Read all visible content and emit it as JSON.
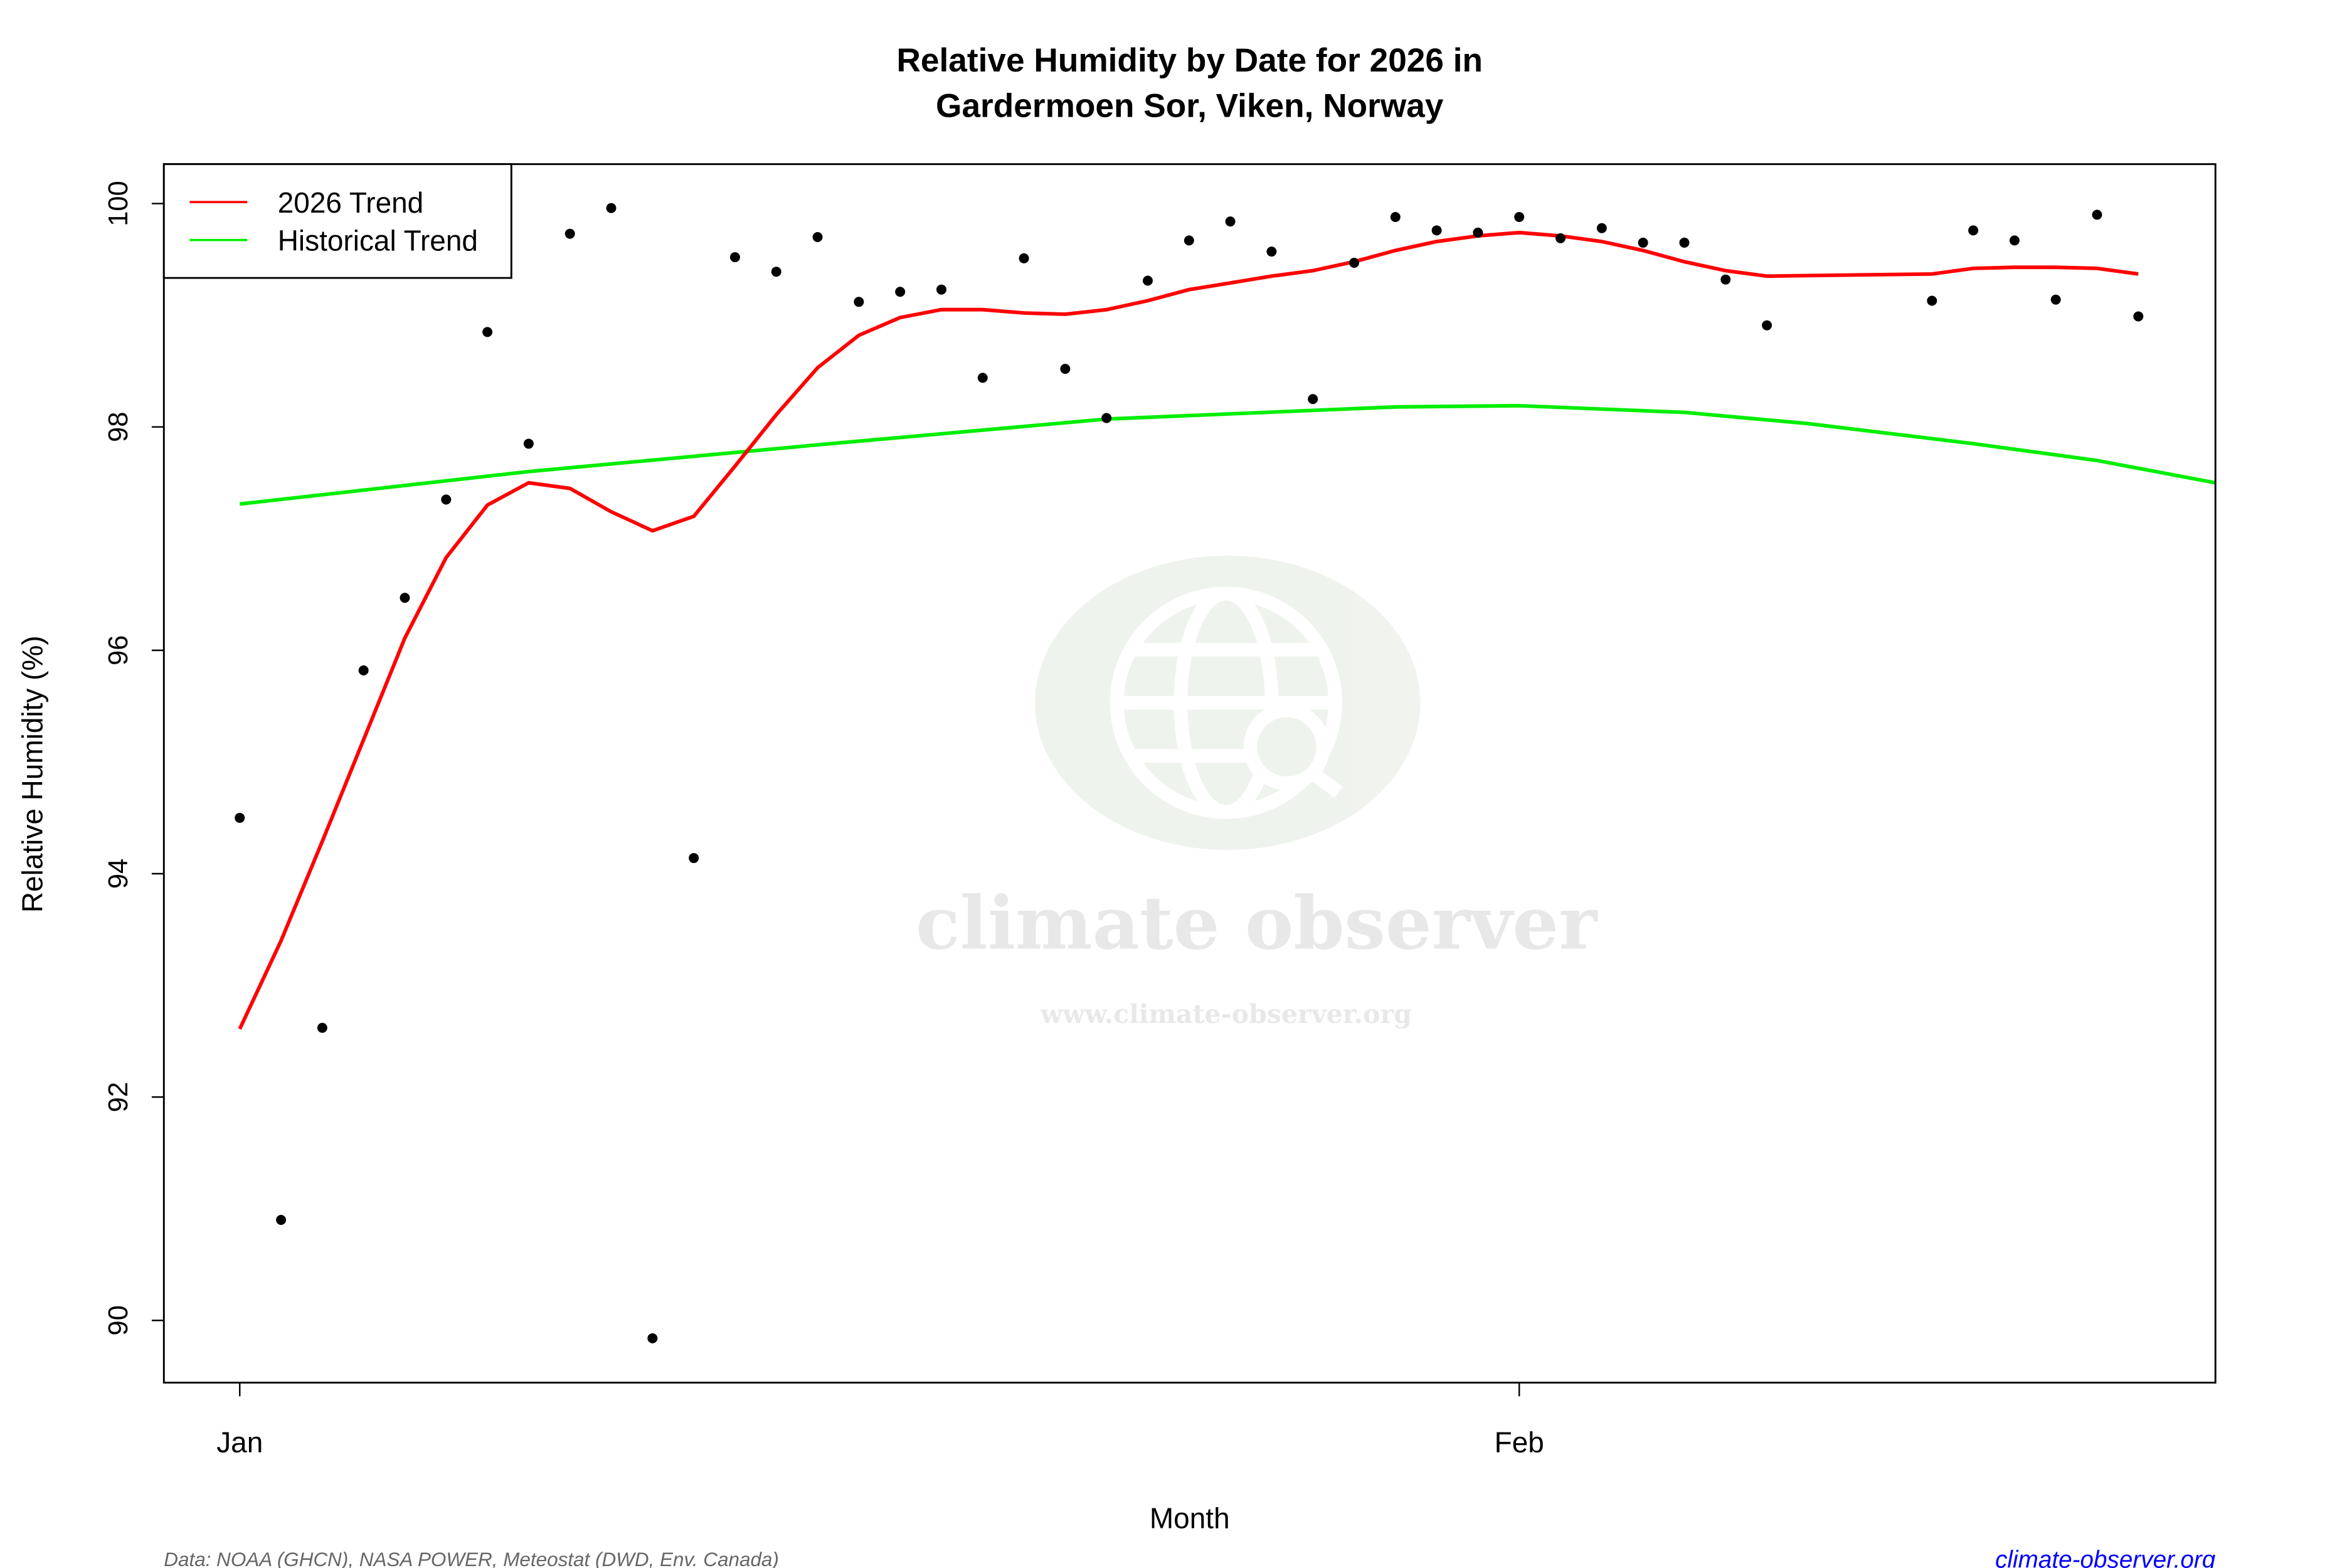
{
  "chart_data": {
    "type": "scatter",
    "title": "Relative Humidity by Date for 2026 in",
    "subtitle": "Gardermoen Sor, Viken, Norway",
    "xlabel": "Month",
    "ylabel": "Relative Humidity (%)",
    "ylim": [
      89.45,
      100.4
    ],
    "xlim": [
      "2026-01-01",
      "2026-02-18"
    ],
    "yticks": [
      90,
      92,
      94,
      96,
      98,
      100
    ],
    "xticks": [
      {
        "date": "2026-01-01",
        "label": "Jan"
      },
      {
        "date": "2026-02-01",
        "label": "Feb"
      }
    ],
    "grid": false,
    "legend_position": "top-left",
    "legend": [
      {
        "label": "2026 Trend",
        "color": "#ff0000"
      },
      {
        "label": "Historical Trend",
        "color": "#00ee00"
      }
    ],
    "points": {
      "color": "#000000",
      "x": [
        "2026-01-01",
        "2026-01-02",
        "2026-01-03",
        "2026-01-04",
        "2026-01-05",
        "2026-01-06",
        "2026-01-07",
        "2026-01-08",
        "2026-01-09",
        "2026-01-10",
        "2026-01-11",
        "2026-01-12",
        "2026-01-13",
        "2026-01-14",
        "2026-01-15",
        "2026-01-16",
        "2026-01-17",
        "2026-01-18",
        "2026-01-19",
        "2026-01-20",
        "2026-01-21",
        "2026-01-22",
        "2026-01-23",
        "2026-01-24",
        "2026-01-25",
        "2026-01-26",
        "2026-01-27",
        "2026-01-28",
        "2026-01-29",
        "2026-01-30",
        "2026-01-31",
        "2026-02-01",
        "2026-02-02",
        "2026-02-03",
        "2026-02-04",
        "2026-02-05",
        "2026-02-06",
        "2026-02-07",
        "2026-02-11",
        "2026-02-12",
        "2026-02-13",
        "2026-02-14",
        "2026-02-15",
        "2026-02-16"
      ],
      "y": [
        94.5,
        90.9,
        92.62,
        95.82,
        96.47,
        97.35,
        98.85,
        97.85,
        99.73,
        99.96,
        89.84,
        94.14,
        99.52,
        99.39,
        99.7,
        99.12,
        99.21,
        99.23,
        98.44,
        99.51,
        98.52,
        98.08,
        99.31,
        99.67,
        99.84,
        99.57,
        98.25,
        99.47,
        99.88,
        99.76,
        99.74,
        99.88,
        99.69,
        99.78,
        99.65,
        99.65,
        99.32,
        98.91,
        99.13,
        99.76,
        99.67,
        99.14,
        99.9,
        98.99
      ]
    },
    "trend_2026": {
      "name": "2026 Trend",
      "color": "#ff0000",
      "x": [
        "2026-01-01",
        "2026-01-02",
        "2026-01-03",
        "2026-01-04",
        "2026-01-05",
        "2026-01-06",
        "2026-01-07",
        "2026-01-08",
        "2026-01-09",
        "2026-01-10",
        "2026-01-11",
        "2026-01-12",
        "2026-01-13",
        "2026-01-14",
        "2026-01-15",
        "2026-01-16",
        "2026-01-17",
        "2026-01-18",
        "2026-01-19",
        "2026-01-20",
        "2026-01-21",
        "2026-01-22",
        "2026-01-23",
        "2026-01-24",
        "2026-01-25",
        "2026-01-26",
        "2026-01-27",
        "2026-01-28",
        "2026-01-29",
        "2026-01-30",
        "2026-01-31",
        "2026-02-01",
        "2026-02-02",
        "2026-02-03",
        "2026-02-04",
        "2026-02-05",
        "2026-02-06",
        "2026-02-07",
        "2026-02-11",
        "2026-02-12",
        "2026-02-13",
        "2026-02-14",
        "2026-02-15",
        "2026-02-16"
      ],
      "y": [
        92.61,
        93.4,
        94.29,
        95.2,
        96.11,
        96.83,
        97.3,
        97.5,
        97.45,
        97.24,
        97.07,
        97.2,
        97.65,
        98.11,
        98.53,
        98.82,
        98.98,
        99.05,
        99.05,
        99.02,
        99.01,
        99.05,
        99.13,
        99.23,
        99.29,
        99.35,
        99.4,
        99.48,
        99.58,
        99.66,
        99.71,
        99.74,
        99.71,
        99.66,
        99.58,
        99.48,
        99.4,
        99.35,
        99.37,
        99.42,
        99.43,
        99.43,
        99.42,
        99.37
      ]
    },
    "trend_historical": {
      "name": "Historical Trend",
      "color": "#00ee00",
      "x": [
        "2026-01-01",
        "2026-01-08",
        "2026-01-15",
        "2026-01-22",
        "2026-01-29",
        "2026-02-01",
        "2026-02-05",
        "2026-02-08",
        "2026-02-12",
        "2026-02-15",
        "2026-02-18"
      ],
      "y": [
        97.31,
        97.6,
        97.84,
        98.07,
        98.18,
        98.19,
        98.13,
        98.03,
        97.85,
        97.7,
        97.49
      ]
    }
  },
  "watermark": {
    "brand": "climate observer",
    "url": "www.climate-observer.org"
  },
  "footer": {
    "source": "Data: NOAA (GHCN), NASA POWER, Meteostat (DWD, Env. Canada)",
    "link": "climate-observer.org",
    "link_color": "#0000ff"
  }
}
